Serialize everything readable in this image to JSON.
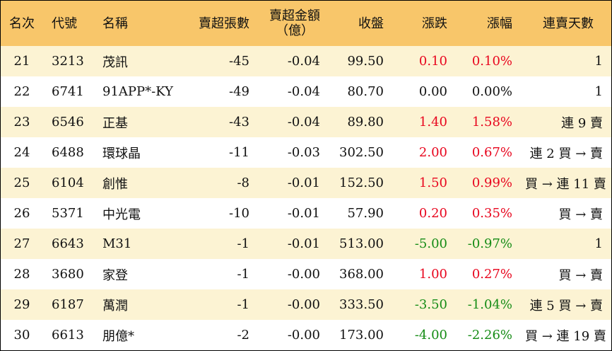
{
  "header": {
    "rank": "名次",
    "code": "代號",
    "name": "名稱",
    "net_sell_volume": "賣超張數",
    "net_sell_amount_line1": "賣超金額",
    "net_sell_amount_line2": "（億）",
    "close": "收盤",
    "change": "漲跌",
    "change_pct": "漲幅",
    "consecutive_days": "連賣天數"
  },
  "colors": {
    "header_bg": "#f8c66a",
    "row_odd_bg": "#fcf3d3",
    "row_even_bg": "#ffffff",
    "up": "#e8061e",
    "down": "#168c16"
  },
  "rows": [
    {
      "rank": "21",
      "code": "3213",
      "name": "茂訊",
      "volume": "-45",
      "amount": "-0.04",
      "close": "99.50",
      "change": "0.10",
      "pct": "0.10%",
      "trend": "up",
      "days": "1"
    },
    {
      "rank": "22",
      "code": "6741",
      "name": "91APP*-KY",
      "volume": "-49",
      "amount": "-0.04",
      "close": "80.70",
      "change": "0.00",
      "pct": "0.00%",
      "trend": "flat",
      "days": "1"
    },
    {
      "rank": "23",
      "code": "6546",
      "name": "正基",
      "volume": "-43",
      "amount": "-0.04",
      "close": "89.80",
      "change": "1.40",
      "pct": "1.58%",
      "trend": "up",
      "days": "連 9 賣"
    },
    {
      "rank": "24",
      "code": "6488",
      "name": "環球晶",
      "volume": "-11",
      "amount": "-0.03",
      "close": "302.50",
      "change": "2.00",
      "pct": "0.67%",
      "trend": "up",
      "days": "連 2 買 → 賣"
    },
    {
      "rank": "25",
      "code": "6104",
      "name": "創惟",
      "volume": "-8",
      "amount": "-0.01",
      "close": "152.50",
      "change": "1.50",
      "pct": "0.99%",
      "trend": "up",
      "days": "買 → 連 11 賣"
    },
    {
      "rank": "26",
      "code": "5371",
      "name": "中光電",
      "volume": "-10",
      "amount": "-0.01",
      "close": "57.90",
      "change": "0.20",
      "pct": "0.35%",
      "trend": "up",
      "days": "買 → 賣"
    },
    {
      "rank": "27",
      "code": "6643",
      "name": "M31",
      "volume": "-1",
      "amount": "-0.01",
      "close": "513.00",
      "change": "-5.00",
      "pct": "-0.97%",
      "trend": "down",
      "days": "1"
    },
    {
      "rank": "28",
      "code": "3680",
      "name": "家登",
      "volume": "-1",
      "amount": "-0.00",
      "close": "368.00",
      "change": "1.00",
      "pct": "0.27%",
      "trend": "up",
      "days": "買 → 賣"
    },
    {
      "rank": "29",
      "code": "6187",
      "name": "萬潤",
      "volume": "-1",
      "amount": "-0.00",
      "close": "333.50",
      "change": "-3.50",
      "pct": "-1.04%",
      "trend": "down",
      "days": "連 5 買 → 賣"
    },
    {
      "rank": "30",
      "code": "6613",
      "name": "朋億*",
      "volume": "-2",
      "amount": "-0.00",
      "close": "173.00",
      "change": "-4.00",
      "pct": "-2.26%",
      "trend": "down",
      "days": "買 → 連 19 賣"
    }
  ]
}
